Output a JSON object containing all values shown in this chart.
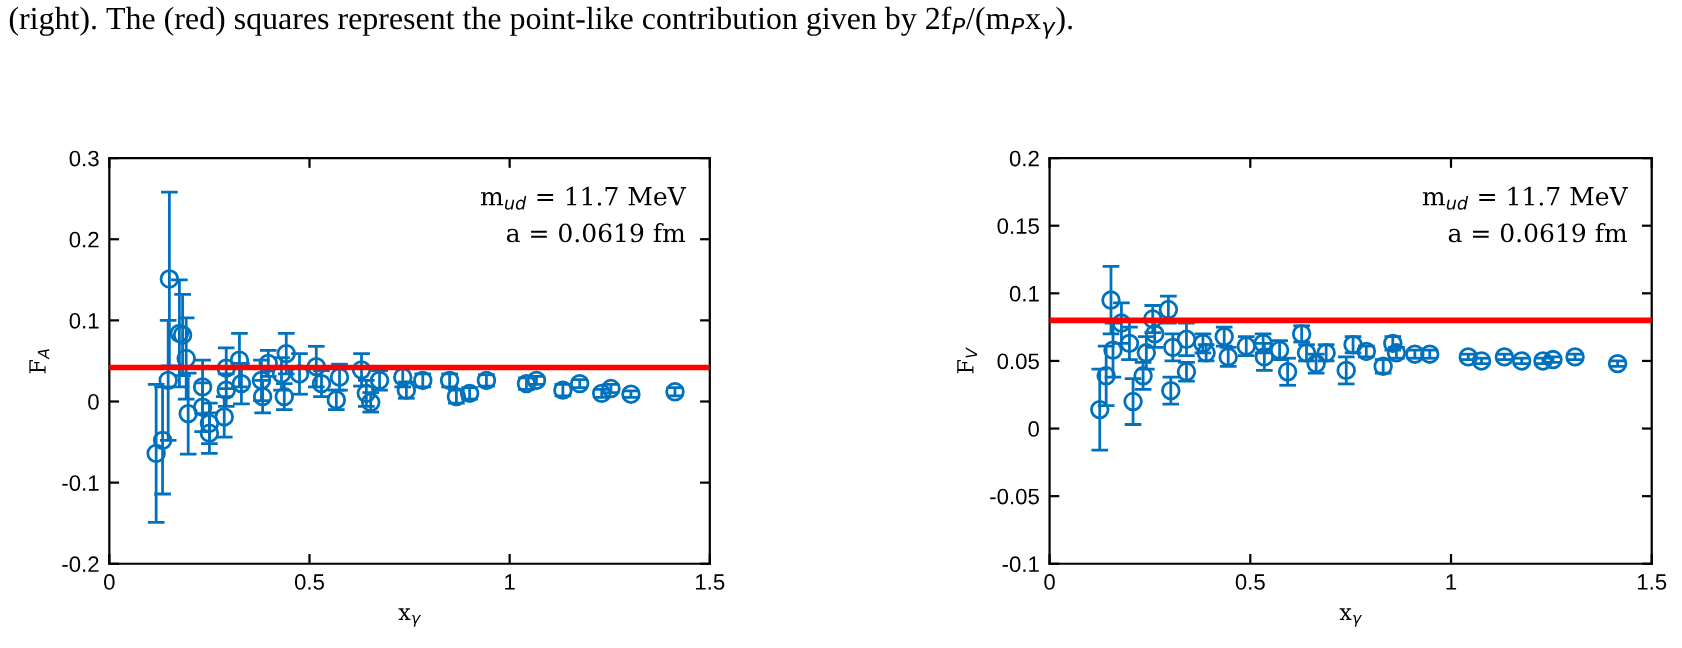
{
  "chart_data": [
    {
      "type": "scatter",
      "xlabel": "x$_{γ}$",
      "ylabel": "F$_{A}$",
      "annotations": [
        "m$_{ud}$ = 11.7 MeV",
        "a = 0.0619 fm",
        "(right). The (red) squares represent the point-like contribution given by 2f$_{P}$/(m$_{P}$x$_{γ}$)."
      ],
      "xlim": [
        0,
        1.5
      ],
      "xticks": [
        0,
        0.5,
        1,
        1.5
      ],
      "ylim": [
        -0.2,
        0.3
      ],
      "yticks": [
        -0.2,
        -0.1,
        0,
        0.1,
        0.2,
        0.3
      ],
      "marker": "circle",
      "grid": false,
      "legend": false,
      "ref_lines": [
        {
          "axis": "y",
          "value": 0.042,
          "label": null,
          "color": "#ff0000"
        }
      ],
      "series": [
        {
          "color": "#0072bd",
          "x": [
            0.117,
            0.133,
            0.15,
            0.147,
            0.175,
            0.183,
            0.192,
            0.197,
            0.233,
            0.233,
            0.25,
            0.25,
            0.287,
            0.292,
            0.292,
            0.325,
            0.33,
            0.38,
            0.383,
            0.397,
            0.43,
            0.442,
            0.437,
            0.475,
            0.517,
            0.53,
            0.567,
            0.575,
            0.63,
            0.642,
            0.653,
            0.675,
            0.733,
            0.742,
            0.783,
            0.85,
            0.867,
            0.9,
            0.942,
            1.042,
            1.067,
            1.133,
            1.175,
            1.23,
            1.253,
            1.303,
            1.413
          ],
          "values": [
            -0.064,
            -0.048,
            0.151,
            0.026,
            0.084,
            0.082,
            0.053,
            -0.015,
            0.018,
            -0.007,
            -0.027,
            -0.039,
            -0.019,
            0.041,
            0.014,
            0.051,
            0.022,
            0.026,
            0.006,
            0.047,
            0.034,
            0.059,
            0.006,
            0.034,
            0.043,
            0.022,
            0.002,
            0.03,
            0.039,
            0.01,
            -0.001,
            0.026,
            0.03,
            0.014,
            0.026,
            0.026,
            0.006,
            0.01,
            0.026,
            0.022,
            0.026,
            0.014,
            0.022,
            0.01,
            0.016,
            0.009,
            0.012
          ],
          "errors": [
            0.085,
            0.066,
            0.107,
            0.074,
            0.066,
            0.05,
            0.05,
            0.05,
            0.033,
            0.03,
            0.025,
            0.025,
            0.025,
            0.025,
            0.02,
            0.033,
            0.025,
            0.025,
            0.02,
            0.016,
            0.02,
            0.025,
            0.016,
            0.025,
            0.025,
            0.016,
            0.012,
            0.016,
            0.02,
            0.016,
            0.012,
            0.012,
            0.012,
            0.01,
            0.008,
            0.008,
            0.008,
            0.007,
            0.007,
            0.007,
            0.005,
            0.007,
            0.005,
            0.005,
            0.005,
            0.004,
            0.005
          ]
        }
      ]
    },
    {
      "type": "scatter",
      "xlabel": "x$_{γ}$",
      "ylabel": "F$_{V}$",
      "annotations": [
        "m$_{ud}$ = 11.7 MeV",
        "a = 0.0619 fm"
      ],
      "xlim": [
        0,
        1.5
      ],
      "xticks": [
        0,
        0.5,
        1,
        1.5
      ],
      "ylim": [
        -0.1,
        0.2
      ],
      "yticks": [
        -0.1,
        -0.05,
        0,
        0.05,
        0.1,
        0.15,
        0.2
      ],
      "marker": "circle",
      "grid": false,
      "legend": false,
      "ref_lines": [
        {
          "axis": "y",
          "value": 0.08,
          "label": null,
          "color": "#ff0000"
        }
      ],
      "series": [
        {
          "color": "#0072bd",
          "x": [
            0.125,
            0.141,
            0.153,
            0.158,
            0.179,
            0.199,
            0.208,
            0.233,
            0.241,
            0.257,
            0.262,
            0.296,
            0.302,
            0.307,
            0.341,
            0.341,
            0.382,
            0.39,
            0.435,
            0.445,
            0.49,
            0.535,
            0.532,
            0.573,
            0.593,
            0.628,
            0.64,
            0.664,
            0.689,
            0.739,
            0.756,
            0.789,
            0.831,
            0.855,
            0.864,
            0.91,
            0.947,
            1.043,
            1.076,
            1.133,
            1.176,
            1.229,
            1.254,
            1.309,
            1.415
          ],
          "values": [
            0.014,
            0.039,
            0.095,
            0.058,
            0.078,
            0.063,
            0.02,
            0.039,
            0.056,
            0.081,
            0.07,
            0.088,
            0.028,
            0.06,
            0.066,
            0.042,
            0.063,
            0.056,
            0.068,
            0.053,
            0.061,
            0.053,
            0.063,
            0.058,
            0.042,
            0.07,
            0.056,
            0.048,
            0.056,
            0.043,
            0.062,
            0.057,
            0.046,
            0.063,
            0.056,
            0.055,
            0.055,
            0.053,
            0.05,
            0.053,
            0.05,
            0.05,
            0.051,
            0.053,
            0.048
          ],
          "errors": [
            0.03,
            0.022,
            0.025,
            0.02,
            0.015,
            0.012,
            0.017,
            0.01,
            0.012,
            0.01,
            0.01,
            0.01,
            0.01,
            0.01,
            0.012,
            0.007,
            0.007,
            0.006,
            0.007,
            0.007,
            0.007,
            0.01,
            0.007,
            0.007,
            0.01,
            0.006,
            0.006,
            0.007,
            0.006,
            0.01,
            0.006,
            0.004,
            0.005,
            0.005,
            0.004,
            0.003,
            0.003,
            0.002,
            0.002,
            0.002,
            0.002,
            0.002,
            0.002,
            0.002,
            0.002
          ]
        }
      ]
    }
  ]
}
